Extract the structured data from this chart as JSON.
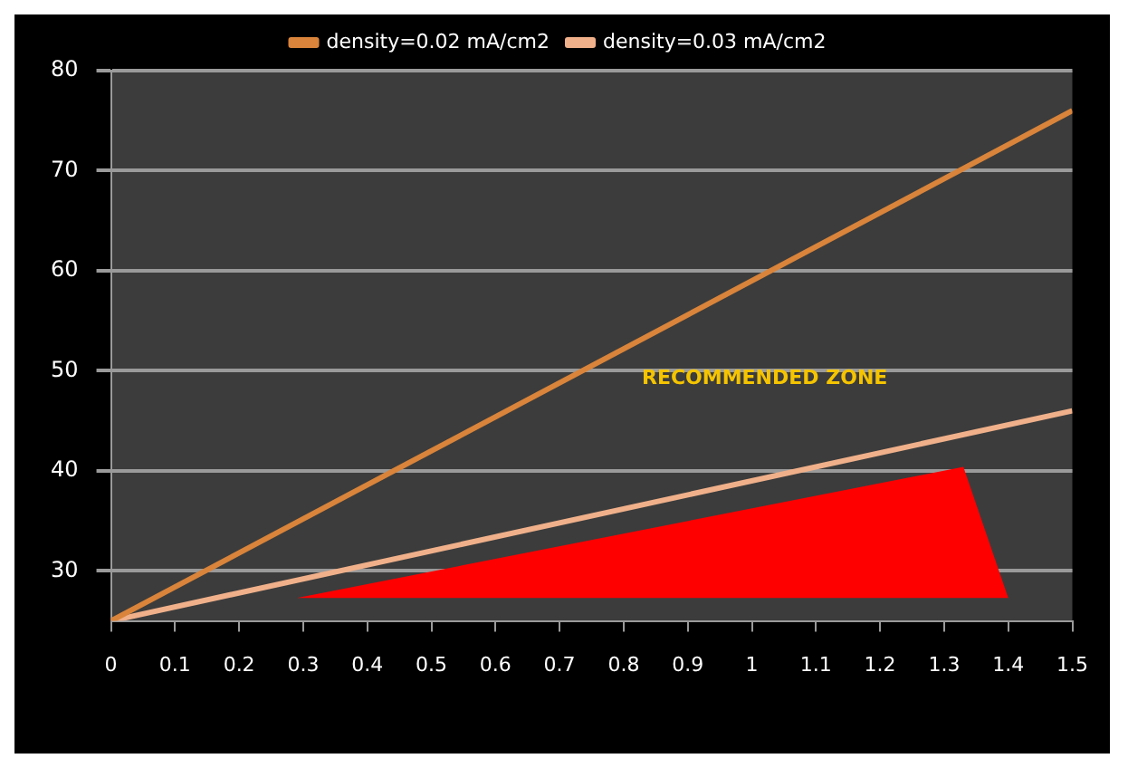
{
  "chart_data": {
    "type": "line",
    "x": [
      0,
      1.5
    ],
    "series": [
      {
        "name": "density=0.02 mA/cm2",
        "color": "#d9843a",
        "values": [
          25,
          76
        ]
      },
      {
        "name": "density=0.03 mA/cm2",
        "color": "#f0b08a",
        "values": [
          25,
          46
        ]
      },
      {
        "type": "area",
        "color": "#ff0000",
        "x": [
          0.29,
          1.33,
          1.4,
          0.29
        ],
        "values": [
          27.3,
          40.4,
          27.3,
          27.3
        ]
      }
    ],
    "xlim": [
      0,
      1.5
    ],
    "xticks": [
      0,
      0.1,
      0.2,
      0.3,
      0.4,
      0.5,
      0.6,
      0.7,
      0.8,
      0.9,
      1,
      1.1,
      1.2,
      1.3,
      1.4,
      1.5
    ],
    "ylim": [
      25,
      80
    ],
    "yticks": [
      30,
      40,
      50,
      60,
      70,
      80
    ],
    "grid": "y",
    "legend": "top",
    "marker": "none",
    "annotations": [
      "RECOMMENDED ZONE"
    ]
  }
}
